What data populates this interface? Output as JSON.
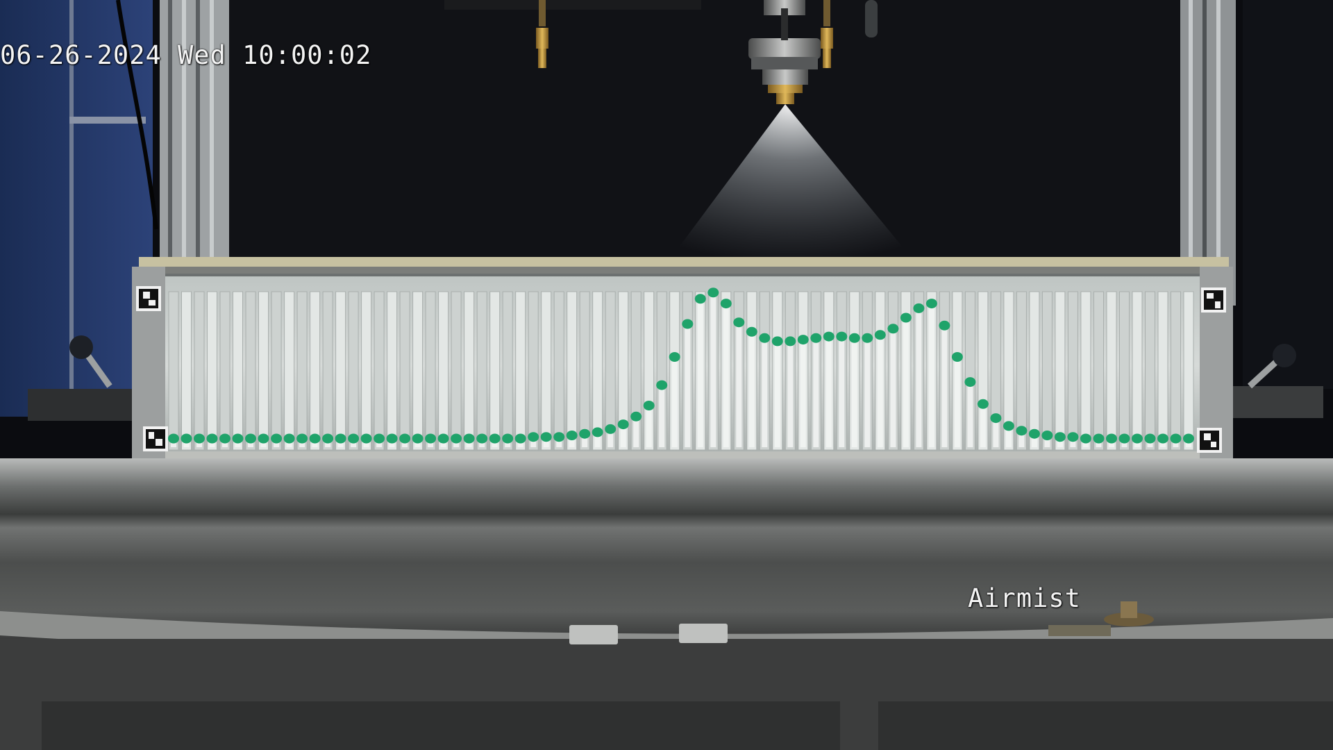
{
  "overlay": {
    "timestamp": "06-26-2024 Wed 10:00:02",
    "label": "Airmist"
  },
  "colors": {
    "backdrop": "#0b0c10",
    "wall_left": "#1c2f5a",
    "frame_metal": "#8e9193",
    "tube_glass": "#d4d8d6",
    "bead_green": "#1fa36a",
    "platform": "#4a4c4b",
    "spray_mist": "#e7ecef"
  },
  "icons": [
    "fiducial-marker-icon",
    "spray-nozzle-icon",
    "lever-knob-icon"
  ],
  "tube_fill_profile": [
    0.02,
    0.02,
    0.02,
    0.02,
    0.02,
    0.02,
    0.02,
    0.02,
    0.02,
    0.02,
    0.02,
    0.02,
    0.02,
    0.02,
    0.02,
    0.02,
    0.02,
    0.02,
    0.02,
    0.02,
    0.02,
    0.02,
    0.02,
    0.02,
    0.02,
    0.02,
    0.02,
    0.02,
    0.03,
    0.03,
    0.03,
    0.04,
    0.05,
    0.06,
    0.08,
    0.11,
    0.16,
    0.23,
    0.36,
    0.54,
    0.75,
    0.91,
    0.95,
    0.88,
    0.76,
    0.7,
    0.66,
    0.64,
    0.64,
    0.65,
    0.66,
    0.67,
    0.67,
    0.66,
    0.66,
    0.68,
    0.72,
    0.79,
    0.85,
    0.88,
    0.74,
    0.54,
    0.38,
    0.24,
    0.15,
    0.1,
    0.07,
    0.05,
    0.04,
    0.03,
    0.03,
    0.02,
    0.02,
    0.02,
    0.02,
    0.02,
    0.02,
    0.02,
    0.02,
    0.02
  ]
}
